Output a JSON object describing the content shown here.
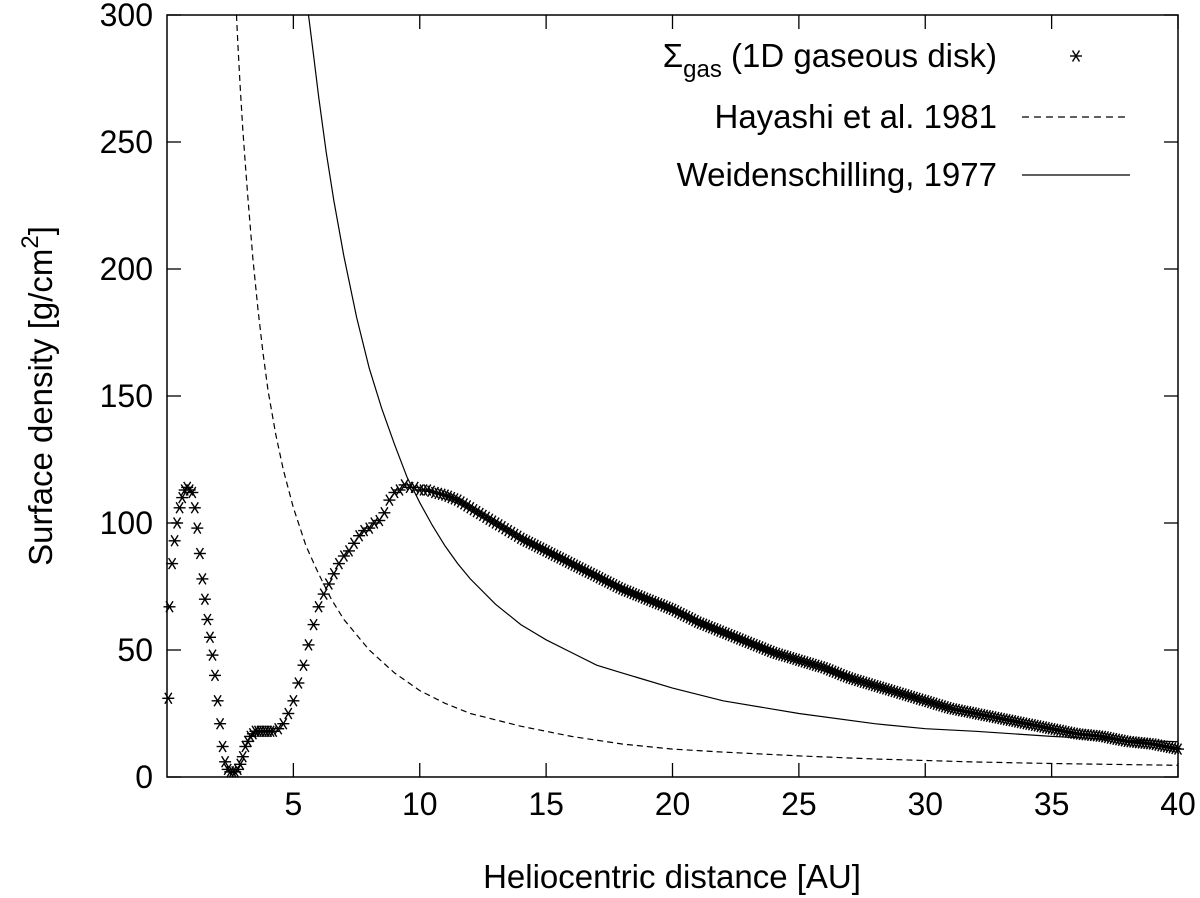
{
  "chart_data": {
    "type": "line",
    "xlabel": "Heliocentric distance [AU]",
    "ylabel_main": "Surface density [g/cm",
    "ylabel_sup": "2",
    "ylabel_tail": "]",
    "xlim": [
      0,
      40
    ],
    "ylim": [
      0,
      300
    ],
    "x_ticks": [
      5,
      10,
      15,
      20,
      25,
      30,
      35,
      40
    ],
    "x_tick_labels": [
      "5",
      "10",
      "15",
      "20",
      "25",
      "30",
      "35",
      "40"
    ],
    "y_ticks": [
      0,
      50,
      100,
      150,
      200,
      250,
      300
    ],
    "y_tick_labels": [
      "0",
      "50",
      "100",
      "150",
      "200",
      "250",
      "300"
    ],
    "grid": false,
    "legend_position": "top-right",
    "series": [
      {
        "name_main": "Σ",
        "name_sub": "gas",
        "name_tail": " (1D gaseous disk)",
        "style": "points-asterisk",
        "color": "#000000",
        "x": [
          0.05,
          0.1,
          0.2,
          0.3,
          0.4,
          0.5,
          0.6,
          0.7,
          0.8,
          0.9,
          1.0,
          1.1,
          1.2,
          1.3,
          1.4,
          1.5,
          1.6,
          1.7,
          1.8,
          1.9,
          2.0,
          2.1,
          2.2,
          2.3,
          2.4,
          2.5,
          2.6,
          2.7,
          2.8,
          2.9,
          3.0,
          3.1,
          3.2,
          3.3,
          3.4,
          3.5,
          3.6,
          3.7,
          3.8,
          3.9,
          4.0,
          4.1,
          4.2,
          4.4,
          4.6,
          4.8,
          5.0,
          5.2,
          5.4,
          5.6,
          5.8,
          6.0,
          6.2,
          6.4,
          6.6,
          6.8,
          7.0,
          7.2,
          7.4,
          7.6,
          7.8,
          8.0,
          8.2,
          8.4,
          8.6,
          8.8,
          9.0,
          9.2,
          9.4,
          9.6,
          9.8,
          10.0,
          10.3,
          10.6,
          11.0,
          11.5,
          12.0,
          12.5,
          13.0,
          13.5,
          14.0,
          15.0,
          16.0,
          17.0,
          18.0,
          19.0,
          20.0,
          21.0,
          22.0,
          23.0,
          24.0,
          25.0,
          26.0,
          27.0,
          28.0,
          29.0,
          30.0,
          31.0,
          32.0,
          33.0,
          34.0,
          35.0,
          36.0,
          37.0,
          38.0,
          39.0,
          40.0
        ],
        "values": [
          31,
          67,
          84,
          93,
          100,
          106,
          110,
          113,
          114,
          113,
          112,
          106,
          98,
          88,
          78,
          70,
          62,
          55,
          48,
          40,
          30,
          21,
          12,
          6,
          3,
          2,
          2,
          2,
          3,
          5,
          8,
          12,
          14,
          16,
          17,
          18,
          18,
          18,
          18,
          18,
          18,
          18,
          18,
          19,
          21,
          25,
          30,
          37,
          44,
          52,
          60,
          67,
          72,
          76,
          80,
          84,
          87,
          89,
          92,
          95,
          97,
          98,
          100,
          101,
          104,
          109,
          112,
          113,
          115,
          114,
          114,
          113,
          113,
          112,
          111,
          109,
          106,
          103,
          100,
          97,
          94,
          89,
          84,
          79,
          74,
          70,
          66,
          61,
          57,
          53,
          49,
          46,
          43,
          39,
          36,
          33,
          30,
          27,
          25,
          23,
          21,
          19,
          17,
          16,
          14,
          13,
          11
        ]
      },
      {
        "name": "Hayashi et al. 1981",
        "style": "dashed",
        "color": "#000000",
        "x": [
          2.75,
          2.8,
          2.9,
          3.0,
          3.1,
          3.2,
          3.4,
          3.6,
          3.8,
          4.0,
          4.3,
          4.6,
          5.0,
          5.5,
          6.0,
          6.5,
          7.0,
          8.0,
          9.0,
          10.0,
          11.0,
          12.0,
          14.0,
          16.0,
          18.0,
          20.0,
          22.0,
          25.0,
          28.0,
          30.0,
          32.0,
          35.0,
          38.0,
          40.0
        ],
        "values": [
          300,
          289,
          271,
          255,
          241,
          228,
          204,
          184,
          167,
          152,
          135,
          121,
          106,
          91,
          80,
          70,
          62,
          50,
          41,
          34,
          29,
          25,
          20,
          16,
          13,
          11,
          9.8,
          8.3,
          7.1,
          6.5,
          5.9,
          5.3,
          4.9,
          4.6
        ]
      },
      {
        "name": "Weidenschilling, 1977",
        "style": "solid",
        "color": "#000000",
        "x": [
          5.6,
          5.8,
          6.0,
          6.3,
          6.6,
          7.0,
          7.5,
          8.0,
          8.5,
          9.0,
          9.5,
          10.0,
          10.5,
          11.0,
          11.5,
          12.0,
          13.0,
          14.0,
          15.0,
          16.0,
          17.0,
          18.0,
          20.0,
          22.0,
          25.0,
          28.0,
          30.0,
          32.0,
          35.0,
          38.0,
          40.0
        ],
        "values": [
          300,
          284,
          268,
          246,
          227,
          205,
          181,
          161,
          145,
          131,
          118,
          108,
          99,
          91,
          84,
          78,
          68,
          60,
          54,
          49,
          44,
          41,
          35,
          30,
          25,
          21,
          19,
          18,
          16,
          14.5,
          13.9
        ]
      }
    ]
  }
}
